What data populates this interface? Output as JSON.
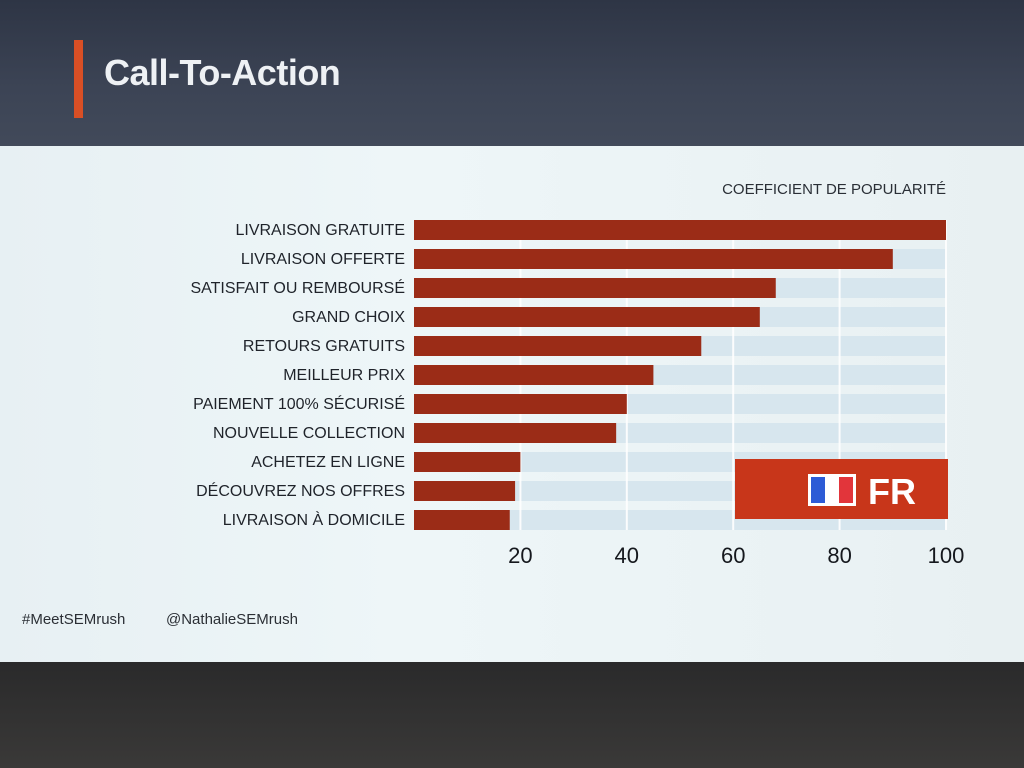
{
  "slide": {
    "title": "Call-To-Action",
    "hashtag": "#MeetSEMrush",
    "handle": "@NathalieSEMrush",
    "badge_text": "FR",
    "badge_icon": "france-flag-icon"
  },
  "colors": {
    "accent": "#d94f25",
    "bar": "#9b2c17",
    "badge": "#c8361a",
    "track": "#d7e6ee"
  },
  "chart_data": {
    "type": "bar",
    "orientation": "horizontal",
    "title": "COEFFICIENT DE POPULARITÉ",
    "xlabel": "",
    "ylabel": "",
    "xlim": [
      0,
      100
    ],
    "xticks": [
      "20",
      "40",
      "60",
      "80",
      "100"
    ],
    "tick_values": [
      20,
      40,
      60,
      80,
      100
    ],
    "categories": [
      "LIVRAISON GRATUITE",
      "LIVRAISON OFFERTE",
      "SATISFAIT OU REMBOURSÉ",
      "GRAND CHOIX",
      "RETOURS GRATUITS",
      "MEILLEUR PRIX",
      "PAIEMENT 100% SÉCURISÉ",
      "NOUVELLE COLLECTION",
      "ACHETEZ EN LIGNE",
      "DÉCOUVREZ NOS OFFRES",
      "LIVRAISON À DOMICILE"
    ],
    "values": [
      100,
      90,
      68,
      65,
      54,
      45,
      40,
      38,
      20,
      19,
      18
    ],
    "grid": true,
    "legend": "none"
  }
}
